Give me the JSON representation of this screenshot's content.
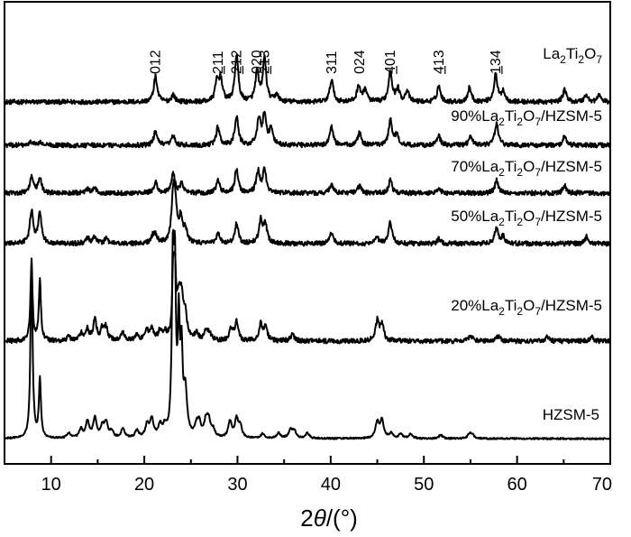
{
  "chart_data": {
    "type": "line",
    "title": "",
    "xlabel": "2θ/(°)",
    "ylabel": "",
    "xlim": [
      5,
      70
    ],
    "x_ticks": [
      10,
      20,
      30,
      40,
      50,
      60,
      70
    ],
    "y_axis_shown": false,
    "grid": false,
    "legend": "labels placed next to each trace, right side",
    "series": [
      {
        "name": "La2Ti2O7",
        "name_parts": {
          "pre": "La",
          "s1": "2",
          "mid": "Ti",
          "s2": "2",
          "post": "O",
          "s3": "7",
          "tail": ""
        },
        "baseline": 0,
        "peaks": [
          [
            21.2,
            28
          ],
          [
            23.1,
            8
          ],
          [
            27.8,
            22
          ],
          [
            28.2,
            24
          ],
          [
            29.9,
            52
          ],
          [
            32.1,
            32
          ],
          [
            32.9,
            48
          ],
          [
            34.2,
            8
          ],
          [
            40.1,
            25
          ],
          [
            43.0,
            18
          ],
          [
            43.7,
            14
          ],
          [
            46.4,
            35
          ],
          [
            47.2,
            14
          ],
          [
            48.2,
            12
          ],
          [
            51.6,
            18
          ],
          [
            54.9,
            16
          ],
          [
            57.7,
            30
          ],
          [
            58.5,
            12
          ],
          [
            65.1,
            14
          ],
          [
            67.4,
            8
          ],
          [
            68.8,
            8
          ]
        ]
      },
      {
        "name": "90%La2Ti2O7/HZSM-5",
        "name_parts": {
          "pre": "90%La",
          "s1": "2",
          "mid": "Ti",
          "s2": "2",
          "post": "O",
          "s3": "7",
          "tail": "/HZSM-5"
        },
        "baseline": 0,
        "peaks": [
          [
            7.9,
            4
          ],
          [
            8.8,
            3
          ],
          [
            21.2,
            15
          ],
          [
            23.1,
            10
          ],
          [
            27.9,
            20
          ],
          [
            29.9,
            32
          ],
          [
            32.3,
            28
          ],
          [
            32.9,
            34
          ],
          [
            33.6,
            18
          ],
          [
            40.1,
            20
          ],
          [
            43.1,
            14
          ],
          [
            46.4,
            28
          ],
          [
            47.1,
            12
          ],
          [
            51.6,
            10
          ],
          [
            55.0,
            10
          ],
          [
            57.8,
            25
          ],
          [
            65.1,
            10
          ]
        ]
      },
      {
        "name": "70%La2Ti2O7/HZSM-5",
        "name_parts": {
          "pre": "70%La",
          "s1": "2",
          "mid": "Ti",
          "s2": "2",
          "post": "O",
          "s3": "7",
          "tail": "/HZSM-5"
        },
        "baseline": 0,
        "peaks": [
          [
            7.9,
            18
          ],
          [
            8.8,
            16
          ],
          [
            13.9,
            4
          ],
          [
            14.7,
            5
          ],
          [
            21.2,
            12
          ],
          [
            23.1,
            22
          ],
          [
            24.0,
            10
          ],
          [
            27.9,
            14
          ],
          [
            29.9,
            27
          ],
          [
            32.2,
            24
          ],
          [
            32.9,
            26
          ],
          [
            40.1,
            10
          ],
          [
            43.1,
            8
          ],
          [
            46.4,
            14
          ],
          [
            51.6,
            6
          ],
          [
            57.8,
            14
          ],
          [
            65.1,
            8
          ]
        ]
      },
      {
        "name": "50%La2Ti2O7/HZSM-5",
        "name_parts": {
          "pre": "50%La",
          "s1": "2",
          "mid": "Ti",
          "s2": "2",
          "post": "O",
          "s3": "7",
          "tail": "/HZSM-5"
        },
        "baseline": 0,
        "peaks": [
          [
            7.9,
            35
          ],
          [
            8.8,
            34
          ],
          [
            13.9,
            6
          ],
          [
            14.7,
            8
          ],
          [
            15.9,
            5
          ],
          [
            20.9,
            7
          ],
          [
            21.2,
            8
          ],
          [
            23.1,
            45
          ],
          [
            23.3,
            35
          ],
          [
            23.9,
            25
          ],
          [
            24.4,
            15
          ],
          [
            27.9,
            12
          ],
          [
            29.9,
            22
          ],
          [
            32.5,
            26
          ],
          [
            33.0,
            20
          ],
          [
            40.1,
            12
          ],
          [
            45.0,
            6
          ],
          [
            46.4,
            24
          ],
          [
            51.6,
            5
          ],
          [
            57.8,
            18
          ],
          [
            58.5,
            8
          ],
          [
            67.5,
            8
          ]
        ]
      },
      {
        "name": "20%La2Ti2O7/HZSM-5",
        "name_parts": {
          "pre": "20%La",
          "s1": "2",
          "mid": "Ti",
          "s2": "2",
          "post": "O",
          "s3": "7",
          "tail": "/HZSM-5"
        },
        "baseline": 0,
        "peaks": [
          [
            7.9,
            88
          ],
          [
            8.8,
            68
          ],
          [
            11.9,
            5
          ],
          [
            13.2,
            8
          ],
          [
            13.9,
            12
          ],
          [
            14.7,
            22
          ],
          [
            15.5,
            12
          ],
          [
            15.9,
            14
          ],
          [
            17.7,
            10
          ],
          [
            19.2,
            6
          ],
          [
            20.3,
            10
          ],
          [
            20.8,
            14
          ],
          [
            21.7,
            10
          ],
          [
            22.2,
            8
          ],
          [
            23.1,
            70
          ],
          [
            23.3,
            65
          ],
          [
            23.7,
            40
          ],
          [
            24.0,
            38
          ],
          [
            24.4,
            25
          ],
          [
            25.6,
            8
          ],
          [
            26.6,
            10
          ],
          [
            27.0,
            8
          ],
          [
            29.3,
            14
          ],
          [
            29.9,
            20
          ],
          [
            32.5,
            18
          ],
          [
            33.0,
            15
          ],
          [
            35.9,
            8
          ],
          [
            45.0,
            22
          ],
          [
            45.5,
            18
          ],
          [
            55.0,
            7
          ],
          [
            58.0,
            6
          ],
          [
            63.3,
            5
          ],
          [
            68.0,
            5
          ]
        ]
      },
      {
        "name": "HZSM-5",
        "name_parts": {
          "pre": "HZSM-5",
          "s1": "",
          "mid": "",
          "s2": "",
          "post": "",
          "s3": "",
          "tail": ""
        },
        "baseline": 0,
        "peaks": [
          [
            7.9,
            198
          ],
          [
            8.8,
            65
          ],
          [
            11.9,
            6
          ],
          [
            13.2,
            10
          ],
          [
            13.9,
            18
          ],
          [
            14.7,
            22
          ],
          [
            15.5,
            12
          ],
          [
            15.9,
            16
          ],
          [
            16.5,
            7
          ],
          [
            17.7,
            10
          ],
          [
            19.2,
            8
          ],
          [
            20.3,
            14
          ],
          [
            20.8,
            20
          ],
          [
            21.7,
            12
          ],
          [
            22.2,
            10
          ],
          [
            23.06,
            178
          ],
          [
            23.28,
            168
          ],
          [
            23.7,
            120
          ],
          [
            24.0,
            85
          ],
          [
            24.4,
            50
          ],
          [
            25.6,
            12
          ],
          [
            25.9,
            14
          ],
          [
            26.6,
            16
          ],
          [
            26.9,
            18
          ],
          [
            27.4,
            8
          ],
          [
            29.2,
            18
          ],
          [
            29.9,
            20
          ],
          [
            30.3,
            12
          ],
          [
            32.7,
            5
          ],
          [
            34.4,
            6
          ],
          [
            35.7,
            10
          ],
          [
            36.1,
            8
          ],
          [
            37.5,
            6
          ],
          [
            45.0,
            18
          ],
          [
            45.5,
            20
          ],
          [
            46.5,
            6
          ],
          [
            47.5,
            5
          ],
          [
            48.6,
            5
          ],
          [
            51.8,
            4
          ],
          [
            54.9,
            5
          ],
          [
            55.2,
            4
          ]
        ]
      }
    ],
    "annotations": [
      {
        "text": "012",
        "bar": false,
        "x": 21.2
      },
      {
        "text": "211",
        "bar": true,
        "x": 27.9
      },
      {
        "text": "212",
        "bar": true,
        "x": 29.9
      },
      {
        "text": "020",
        "bar": false,
        "x": 32.1
      },
      {
        "text": "213",
        "bar": true,
        "x": 32.9
      },
      {
        "text": "311",
        "bar": false,
        "x": 40.1
      },
      {
        "text": "024",
        "bar": false,
        "x": 43.1
      },
      {
        "text": "401",
        "bar": true,
        "x": 46.4
      },
      {
        "text": "413",
        "bar": true,
        "x": 51.6
      },
      {
        "text": "134",
        "bar": true,
        "x": 57.7
      }
    ]
  }
}
